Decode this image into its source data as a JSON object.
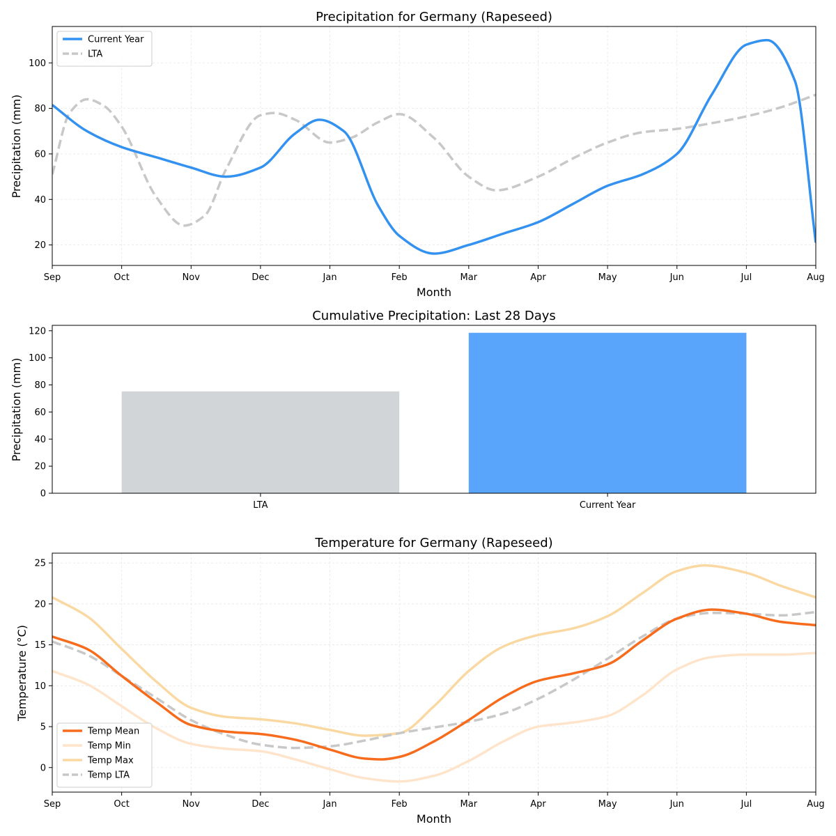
{
  "chart_data": [
    {
      "type": "line",
      "title": "Precipitation for Germany (Rapeseed)",
      "xlabel": "Month",
      "ylabel": "Precipitation (mm)",
      "x_ticks": [
        "Sep",
        "Oct",
        "Nov",
        "Dec",
        "Jan",
        "Feb",
        "Mar",
        "Apr",
        "May",
        "Jun",
        "Jul",
        "Aug"
      ],
      "ylim": [
        11,
        116
      ],
      "yticks": [
        20,
        40,
        60,
        80,
        100
      ],
      "grid": true,
      "legend": "upper-left",
      "series": [
        {
          "name": "Current Year",
          "style": "solid",
          "color": "#3391F0",
          "x": [
            0,
            0.5,
            1.0,
            1.5,
            2.0,
            2.5,
            3.0,
            3.5,
            3.85,
            4.2,
            4.7,
            5.0,
            5.5,
            6.0,
            6.5,
            7.0,
            7.5,
            8.0,
            8.5,
            9.0,
            9.5,
            10.0,
            10.3,
            10.7,
            11.0
          ],
          "y": [
            81.5,
            70,
            63,
            58.5,
            54,
            50,
            54,
            69,
            75,
            70,
            37,
            24,
            16.2,
            20,
            25,
            30,
            38,
            46,
            51,
            60,
            86,
            108,
            110,
            92,
            21
          ]
        },
        {
          "name": "LTA",
          "style": "dashed",
          "color": "#C8C8C8",
          "x": [
            0,
            0.25,
            0.5,
            0.75,
            1.0,
            1.5,
            1.9,
            2.2,
            2.5,
            3.0,
            3.2,
            3.5,
            4.0,
            4.3,
            4.7,
            5.0,
            5.5,
            6.0,
            6.4,
            7.0,
            7.5,
            8.0,
            8.5,
            9.0,
            9.5,
            10.0,
            10.5,
            11.0
          ],
          "y": [
            51,
            78,
            84,
            81,
            72,
            41,
            28.5,
            33,
            53,
            77,
            78,
            75,
            65,
            67,
            74,
            77.5,
            67,
            50,
            44,
            50,
            58,
            65,
            69.5,
            71,
            73.5,
            76.5,
            80.5,
            86
          ]
        }
      ]
    },
    {
      "type": "bar",
      "title": "Cumulative Precipitation: Last 28 Days",
      "xlabel": "",
      "ylabel": "Precipitation (mm)",
      "categories": [
        "LTA",
        "Current Year"
      ],
      "values": [
        75.2,
        118.5
      ],
      "colors": [
        "#D1D5D8",
        "#58A5FB"
      ],
      "ylim": [
        0,
        124
      ],
      "yticks": [
        0,
        20,
        40,
        60,
        80,
        100,
        120
      ],
      "grid": false
    },
    {
      "type": "line",
      "title": "Temperature for Germany (Rapeseed)",
      "xlabel": "Month",
      "ylabel": "Temperature (°C)",
      "x_ticks": [
        "Sep",
        "Oct",
        "Nov",
        "Dec",
        "Jan",
        "Feb",
        "Mar",
        "Apr",
        "May",
        "Jun",
        "Jul",
        "Aug"
      ],
      "ylim": [
        -3,
        26.2
      ],
      "yticks": [
        0,
        5,
        10,
        15,
        20,
        25
      ],
      "grid": true,
      "legend": "lower-left",
      "series": [
        {
          "name": "Temp Mean",
          "style": "solid",
          "color": "#F76B1C",
          "x": [
            0,
            0.5,
            1.0,
            1.5,
            2.0,
            2.5,
            3.0,
            3.5,
            4.0,
            4.5,
            4.75,
            5.0,
            5.5,
            6.0,
            6.5,
            7.0,
            7.5,
            8.0,
            8.5,
            9.0,
            9.5,
            10.0,
            10.5,
            11.0
          ],
          "y": [
            16,
            14.5,
            11.2,
            8,
            5.2,
            4.4,
            4.1,
            3.4,
            2.2,
            1.1,
            1.0,
            1.3,
            3.2,
            5.8,
            8.6,
            10.6,
            11.5,
            12.6,
            15.5,
            18.2,
            19.3,
            18.8,
            17.8,
            17.4
          ]
        },
        {
          "name": "Temp Min",
          "style": "solid",
          "color": "#FFE4CC",
          "x": [
            0,
            0.5,
            1.0,
            1.5,
            2.0,
            2.5,
            3.0,
            3.5,
            4.0,
            4.5,
            5.0,
            5.5,
            6.0,
            6.5,
            7.0,
            7.5,
            8.0,
            8.5,
            9.0,
            9.5,
            10.0,
            10.5,
            11.0
          ],
          "y": [
            11.8,
            10.2,
            7.5,
            4.8,
            2.9,
            2.3,
            2.0,
            1.0,
            -0.2,
            -1.3,
            -1.7,
            -1.0,
            0.8,
            3.2,
            5.0,
            5.5,
            6.3,
            8.8,
            12.0,
            13.5,
            13.8,
            13.8,
            14.0
          ]
        },
        {
          "name": "Temp Max",
          "style": "solid",
          "color": "#FAD8A2",
          "x": [
            0,
            0.5,
            1.0,
            1.5,
            2.0,
            2.5,
            3.0,
            3.5,
            4.0,
            4.5,
            5.0,
            5.5,
            6.0,
            6.5,
            7.0,
            7.5,
            8.0,
            8.5,
            9.0,
            9.4,
            10.0,
            10.5,
            11.0
          ],
          "y": [
            20.8,
            18.5,
            14.5,
            10.5,
            7.3,
            6.2,
            5.9,
            5.4,
            4.6,
            3.9,
            4.2,
            7.5,
            11.8,
            14.8,
            16.2,
            17.0,
            18.5,
            21.3,
            24.0,
            24.7,
            23.8,
            22.2,
            20.8
          ]
        },
        {
          "name": "Temp LTA",
          "style": "dashed",
          "color": "#C8C8C8",
          "x": [
            0,
            0.5,
            1.0,
            1.5,
            2.0,
            2.5,
            3.0,
            3.5,
            4.0,
            4.5,
            5.0,
            5.5,
            6.0,
            6.5,
            7.0,
            7.5,
            8.0,
            8.5,
            9.0,
            9.5,
            10.0,
            10.5,
            11.0
          ],
          "y": [
            15.4,
            13.8,
            11.2,
            8.5,
            5.8,
            4.0,
            2.8,
            2.4,
            2.6,
            3.3,
            4.2,
            4.9,
            5.6,
            6.6,
            8.4,
            10.7,
            13.3,
            16.0,
            18.2,
            18.9,
            18.8,
            18.6,
            19.0
          ]
        }
      ]
    }
  ]
}
